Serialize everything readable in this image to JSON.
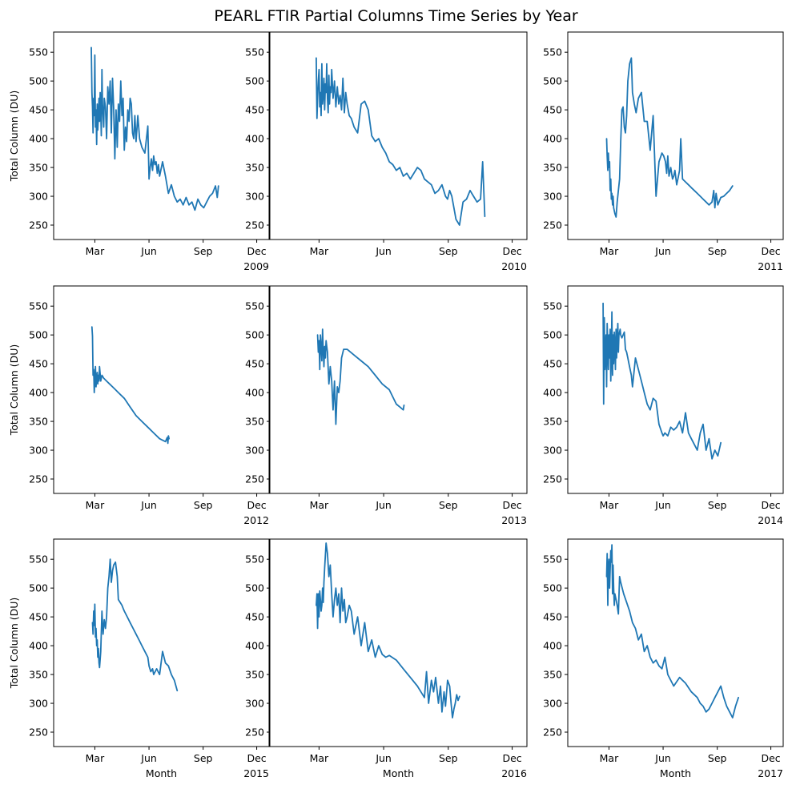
{
  "title": "PEARL FTIR Partial Columns Time Series by Year",
  "colors": {
    "line": "#1f77b4"
  },
  "chart_data": {
    "type": "line",
    "layout": "3x3 small multiples",
    "xlabel": "Month",
    "ylabel": "Total Column (DU)",
    "ylim": [
      225,
      585
    ],
    "yticks": [
      250,
      300,
      350,
      400,
      450,
      500,
      550
    ],
    "xlim_day_of_year": [
      -10,
      356
    ],
    "xticks": [
      {
        "label": "Mar",
        "day": 60
      },
      {
        "label": "Jun",
        "day": 152
      },
      {
        "label": "Sep",
        "day": 244
      },
      {
        "label": "Dec",
        "day": 335
      }
    ],
    "grid": false,
    "panels": [
      {
        "year": "2009",
        "x": [
          54,
          55,
          56,
          57,
          58,
          59,
          60,
          61,
          62,
          63,
          64,
          65,
          66,
          67,
          68,
          69,
          70,
          71,
          72,
          73,
          74,
          75,
          76,
          78,
          80,
          82,
          84,
          86,
          88,
          90,
          92,
          94,
          96,
          98,
          100,
          102,
          104,
          106,
          108,
          110,
          112,
          114,
          116,
          118,
          120,
          122,
          124,
          126,
          128,
          130,
          133,
          136,
          140,
          145,
          150,
          152,
          154,
          156,
          158,
          160,
          162,
          164,
          166,
          168,
          170,
          172,
          175,
          180,
          185,
          190,
          195,
          200,
          205,
          210,
          215,
          220,
          225,
          230,
          235,
          240,
          245,
          250,
          255,
          260,
          265,
          268,
          270
        ],
        "y": [
          558,
          480,
          455,
          410,
          470,
          440,
          545,
          420,
          450,
          390,
          460,
          415,
          440,
          470,
          430,
          480,
          450,
          405,
          520,
          460,
          440,
          420,
          470,
          455,
          400,
          490,
          460,
          500,
          410,
          505,
          450,
          365,
          450,
          385,
          460,
          430,
          500,
          440,
          470,
          380,
          420,
          395,
          450,
          430,
          470,
          460,
          410,
          400,
          440,
          395,
          440,
          400,
          385,
          375,
          422,
          330,
          350,
          365,
          345,
          370,
          355,
          360,
          340,
          355,
          335,
          345,
          360,
          335,
          305,
          320,
          300,
          290,
          295,
          285,
          298,
          285,
          290,
          276,
          295,
          285,
          280,
          290,
          300,
          305,
          318,
          298,
          318
        ]
      },
      {
        "year": "2010",
        "x": [
          56,
          57,
          58,
          59,
          60,
          61,
          62,
          63,
          64,
          65,
          66,
          67,
          68,
          69,
          70,
          71,
          72,
          73,
          74,
          75,
          76,
          77,
          78,
          80,
          82,
          84,
          86,
          88,
          90,
          92,
          94,
          96,
          98,
          100,
          103,
          106,
          110,
          115,
          120,
          125,
          130,
          135,
          140,
          145,
          150,
          155,
          160,
          165,
          170,
          175,
          180,
          185,
          190,
          195,
          200,
          205,
          210,
          215,
          220,
          225,
          230,
          235,
          240,
          243,
          246,
          249,
          252,
          255,
          260,
          265,
          270,
          275,
          280,
          285,
          290,
          293,
          296
        ],
        "y": [
          540,
          435,
          470,
          500,
          520,
          455,
          480,
          440,
          530,
          460,
          475,
          505,
          450,
          495,
          480,
          530,
          470,
          445,
          510,
          460,
          490,
          480,
          520,
          470,
          500,
          455,
          490,
          460,
          475,
          450,
          505,
          445,
          480,
          460,
          440,
          435,
          420,
          410,
          460,
          465,
          450,
          405,
          395,
          400,
          385,
          375,
          360,
          355,
          345,
          350,
          335,
          340,
          330,
          340,
          350,
          345,
          330,
          325,
          320,
          305,
          310,
          320,
          300,
          295,
          310,
          300,
          280,
          260,
          250,
          290,
          295,
          310,
          300,
          290,
          295,
          360,
          265
        ]
      },
      {
        "year": "2011",
        "x": [
          56,
          57,
          58,
          59,
          60,
          61,
          62,
          63,
          64,
          65,
          66,
          67,
          68,
          70,
          72,
          74,
          76,
          78,
          80,
          82,
          84,
          86,
          88,
          90,
          92,
          95,
          98,
          100,
          103,
          106,
          110,
          115,
          120,
          125,
          130,
          135,
          140,
          145,
          150,
          153,
          156,
          158,
          160,
          162,
          165,
          168,
          170,
          172,
          175,
          178,
          180,
          182,
          185,
          190,
          195,
          200,
          205,
          210,
          215,
          220,
          225,
          230,
          235,
          238,
          240,
          242,
          245,
          250,
          255,
          260,
          265,
          270
        ],
        "y": [
          400,
          370,
          345,
          375,
          350,
          360,
          310,
          330,
          295,
          305,
          285,
          300,
          280,
          270,
          264,
          290,
          310,
          330,
          395,
          450,
          455,
          420,
          410,
          440,
          500,
          530,
          540,
          480,
          460,
          445,
          470,
          480,
          430,
          430,
          380,
          440,
          300,
          360,
          375,
          370,
          360,
          340,
          370,
          335,
          350,
          330,
          335,
          345,
          320,
          335,
          345,
          400,
          330,
          325,
          320,
          315,
          310,
          305,
          300,
          295,
          290,
          285,
          290,
          310,
          280,
          305,
          285,
          298,
          300,
          305,
          310,
          318
        ]
      },
      {
        "year": "2012",
        "x": [
          55,
          56,
          57,
          58,
          59,
          60,
          61,
          62,
          63,
          64,
          65,
          66,
          67,
          68,
          70,
          72,
          75,
          80,
          85,
          90,
          95,
          100,
          110,
          120,
          130,
          140,
          150,
          160,
          170,
          180,
          183,
          184,
          185,
          186
        ],
        "y": [
          514,
          498,
          430,
          440,
          400,
          420,
          445,
          410,
          425,
          435,
          415,
          430,
          420,
          445,
          420,
          430,
          425,
          420,
          415,
          410,
          405,
          400,
          390,
          375,
          360,
          350,
          340,
          330,
          320,
          315,
          322,
          312,
          325,
          320
        ]
      },
      {
        "year": "2013",
        "x": [
          58,
          59,
          60,
          61,
          62,
          63,
          64,
          65,
          66,
          67,
          68,
          69,
          70,
          72,
          74,
          76,
          78,
          80,
          82,
          84,
          86,
          88,
          90,
          92,
          95,
          100,
          110,
          120,
          130,
          140,
          150,
          160,
          170,
          175,
          180,
          181
        ],
        "y": [
          500,
          470,
          490,
          440,
          500,
          480,
          455,
          510,
          470,
          445,
          480,
          460,
          490,
          470,
          415,
          445,
          420,
          370,
          420,
          345,
          410,
          400,
          420,
          460,
          475,
          475,
          465,
          455,
          445,
          430,
          415,
          405,
          380,
          375,
          370,
          378
        ]
      },
      {
        "year": "2014",
        "x": [
          50,
          51,
          52,
          53,
          54,
          55,
          56,
          57,
          58,
          59,
          60,
          61,
          62,
          63,
          64,
          65,
          66,
          67,
          68,
          69,
          70,
          71,
          72,
          73,
          74,
          75,
          76,
          77,
          78,
          79,
          80,
          82,
          84,
          86,
          88,
          90,
          92,
          94,
          96,
          98,
          100,
          105,
          110,
          115,
          120,
          125,
          130,
          135,
          140,
          145,
          150,
          152,
          155,
          160,
          165,
          170,
          175,
          180,
          185,
          190,
          195,
          200,
          205,
          210,
          215,
          220,
          225,
          230,
          235,
          240,
          245,
          250
        ],
        "y": [
          555,
          380,
          530,
          440,
          470,
          500,
          410,
          520,
          480,
          440,
          500,
          460,
          510,
          420,
          470,
          540,
          430,
          500,
          450,
          505,
          480,
          440,
          510,
          460,
          490,
          520,
          470,
          500,
          505,
          510,
          500,
          495,
          500,
          505,
          475,
          470,
          460,
          450,
          440,
          430,
          410,
          460,
          440,
          420,
          400,
          380,
          370,
          390,
          385,
          345,
          330,
          325,
          330,
          325,
          340,
          335,
          340,
          350,
          330,
          365,
          330,
          320,
          310,
          300,
          330,
          345,
          300,
          320,
          285,
          300,
          290,
          313
        ]
      },
      {
        "year": "2015",
        "x": [
          56,
          57,
          58,
          59,
          60,
          61,
          62,
          63,
          64,
          65,
          66,
          67,
          68,
          70,
          72,
          74,
          76,
          78,
          80,
          82,
          84,
          86,
          88,
          90,
          92,
          95,
          98,
          100,
          103,
          106,
          108,
          110,
          115,
          120,
          125,
          130,
          135,
          140,
          145,
          150,
          152,
          155,
          158,
          160,
          165,
          170,
          175,
          180,
          185,
          190,
          195,
          200
        ],
        "y": [
          440,
          420,
          460,
          435,
          472,
          415,
          430,
          400,
          410,
          380,
          395,
          370,
          362,
          390,
          460,
          420,
          445,
          430,
          450,
          500,
          520,
          550,
          510,
          530,
          540,
          545,
          520,
          480,
          475,
          470,
          465,
          460,
          450,
          440,
          430,
          420,
          410,
          400,
          390,
          380,
          365,
          355,
          360,
          350,
          360,
          350,
          390,
          370,
          365,
          350,
          340,
          322
        ]
      },
      {
        "year": "2016",
        "x": [
          56,
          57,
          58,
          59,
          60,
          61,
          62,
          63,
          64,
          65,
          66,
          67,
          68,
          70,
          72,
          74,
          76,
          78,
          80,
          82,
          84,
          86,
          88,
          90,
          92,
          94,
          96,
          98,
          100,
          103,
          106,
          110,
          115,
          120,
          125,
          130,
          135,
          140,
          145,
          150,
          155,
          160,
          170,
          180,
          190,
          200,
          205,
          210,
          213,
          216,
          220,
          223,
          226,
          230,
          233,
          235,
          238,
          240,
          243,
          246,
          248,
          250,
          252,
          254,
          256,
          258,
          260
        ],
        "y": [
          470,
          490,
          430,
          490,
          450,
          495,
          480,
          460,
          470,
          500,
          475,
          510,
          535,
          578,
          560,
          520,
          540,
          490,
          450,
          480,
          500,
          470,
          490,
          440,
          500,
          460,
          480,
          440,
          450,
          470,
          460,
          420,
          450,
          400,
          440,
          390,
          410,
          380,
          400,
          385,
          380,
          383,
          375,
          360,
          345,
          330,
          320,
          310,
          355,
          300,
          340,
          320,
          345,
          300,
          330,
          285,
          320,
          295,
          340,
          330,
          300,
          275,
          290,
          300,
          315,
          305,
          312
        ]
      },
      {
        "year": "2017",
        "x": [
          56,
          57,
          58,
          59,
          60,
          61,
          62,
          63,
          64,
          65,
          66,
          67,
          68,
          69,
          70,
          72,
          74,
          76,
          78,
          80,
          85,
          90,
          95,
          100,
          105,
          110,
          115,
          120,
          125,
          130,
          135,
          140,
          145,
          150,
          155,
          160,
          170,
          180,
          190,
          200,
          210,
          215,
          220,
          225,
          230,
          235,
          240,
          245,
          250,
          255,
          260,
          265,
          270,
          275,
          280
        ],
        "y": [
          520,
          560,
          470,
          540,
          550,
          500,
          530,
          565,
          545,
          575,
          490,
          540,
          500,
          470,
          490,
          480,
          470,
          455,
          520,
          510,
          490,
          475,
          460,
          440,
          430,
          410,
          420,
          390,
          400,
          380,
          370,
          375,
          365,
          360,
          380,
          350,
          330,
          345,
          335,
          320,
          310,
          300,
          295,
          285,
          290,
          300,
          310,
          320,
          330,
          310,
          295,
          285,
          275,
          295,
          310
        ]
      }
    ]
  }
}
